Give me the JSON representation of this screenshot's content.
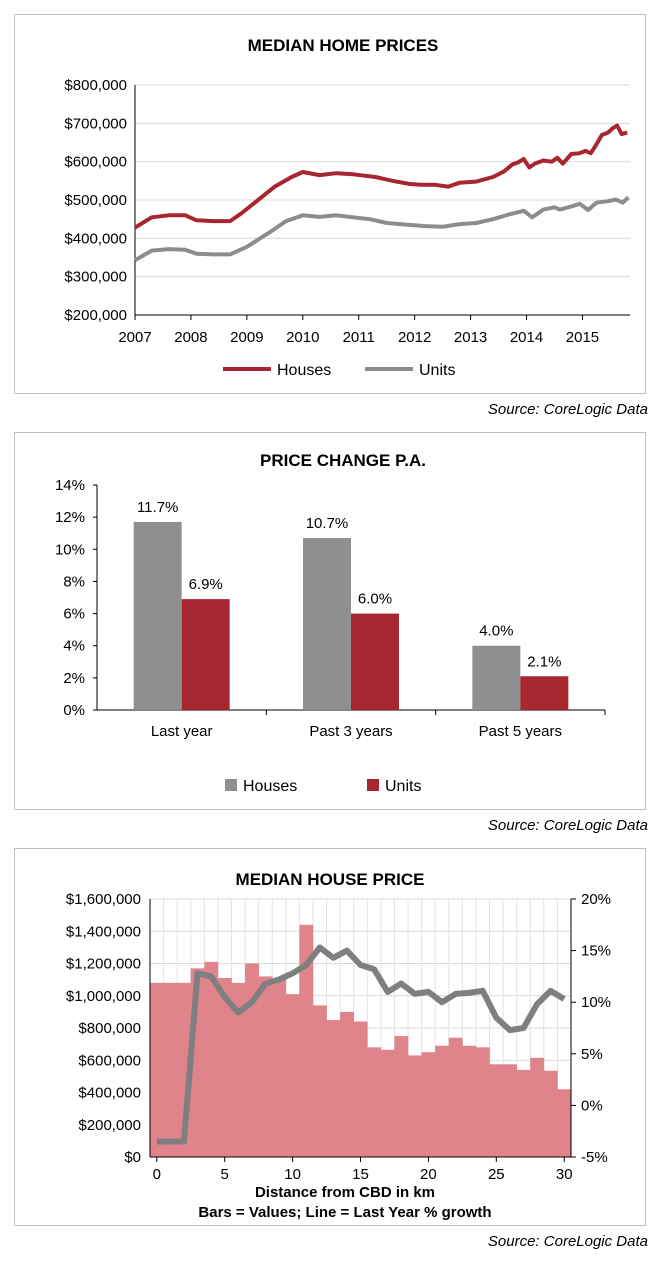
{
  "colors": {
    "houses": "#a8262f",
    "units": "#8c8c8c",
    "grey_bar": "#8f8f8f",
    "pink_bar": "#e0848b",
    "line_grey": "#7f7f7f"
  },
  "sources": [
    "Source: CoreLogic Data",
    "Source: CoreLogic Data",
    "Source: CoreLogic Data"
  ],
  "chart_data": [
    {
      "type": "line",
      "title": "MEDIAN HOME PRICES",
      "xlim": [
        2007,
        2015.85
      ],
      "ylim": [
        200000,
        800000
      ],
      "x_ticks": [
        2007,
        2008,
        2009,
        2010,
        2011,
        2012,
        2013,
        2014,
        2015
      ],
      "x_tick_labels": [
        "2007",
        "2008",
        "2009",
        "2010",
        "2011",
        "2012",
        "2013",
        "2014",
        "2015"
      ],
      "y_ticks": [
        200000,
        300000,
        400000,
        500000,
        600000,
        700000,
        800000
      ],
      "y_tick_labels": [
        "$200,000",
        "$300,000",
        "$400,000",
        "$500,000",
        "$600,000",
        "$700,000",
        "$800,000"
      ],
      "legend": "bottom",
      "series": [
        {
          "name": "Houses",
          "x": [
            2007.0,
            2007.3,
            2007.6,
            2007.9,
            2008.1,
            2008.4,
            2008.7,
            2008.9,
            2009.2,
            2009.5,
            2009.8,
            2010.0,
            2010.3,
            2010.6,
            2010.9,
            2011.3,
            2011.6,
            2011.9,
            2012.1,
            2012.35,
            2012.6,
            2012.8,
            2013.1,
            2013.4,
            2013.6,
            2013.75,
            2013.85,
            2013.95,
            2014.05,
            2014.15,
            2014.3,
            2014.45,
            2014.55,
            2014.65,
            2014.8,
            2014.95,
            2015.05,
            2015.15,
            2015.25,
            2015.35,
            2015.45,
            2015.55,
            2015.62,
            2015.7,
            2015.8
          ],
          "y": [
            428000,
            455000,
            460000,
            460000,
            447000,
            445000,
            445000,
            465000,
            500000,
            535000,
            560000,
            573000,
            565000,
            570000,
            567000,
            560000,
            550000,
            542000,
            540000,
            540000,
            535000,
            545000,
            548000,
            560000,
            575000,
            593000,
            598000,
            607000,
            585000,
            595000,
            603000,
            600000,
            610000,
            595000,
            620000,
            622000,
            628000,
            622000,
            645000,
            670000,
            675000,
            688000,
            694000,
            672000,
            676000
          ]
        },
        {
          "name": "Units",
          "x": [
            2007.0,
            2007.3,
            2007.6,
            2007.9,
            2008.1,
            2008.4,
            2008.7,
            2009.0,
            2009.4,
            2009.7,
            2010.0,
            2010.3,
            2010.6,
            2010.9,
            2011.2,
            2011.5,
            2011.9,
            2012.2,
            2012.5,
            2012.8,
            2013.1,
            2013.4,
            2013.7,
            2013.85,
            2013.95,
            2014.1,
            2014.3,
            2014.5,
            2014.6,
            2014.8,
            2014.95,
            2015.1,
            2015.25,
            2015.45,
            2015.6,
            2015.72,
            2015.82
          ],
          "y": [
            343000,
            368000,
            372000,
            370000,
            360000,
            358000,
            358000,
            378000,
            415000,
            445000,
            460000,
            456000,
            460000,
            455000,
            450000,
            440000,
            435000,
            432000,
            430000,
            437000,
            440000,
            450000,
            463000,
            468000,
            472000,
            455000,
            475000,
            481000,
            475000,
            483000,
            490000,
            474000,
            493000,
            497000,
            501000,
            493000,
            507000
          ]
        }
      ]
    },
    {
      "type": "bar",
      "title": "PRICE CHANGE P.A.",
      "categories": [
        "Last year",
        "Past 3 years",
        "Past 5 years"
      ],
      "ylim": [
        0,
        14
      ],
      "y_ticks": [
        0,
        2,
        4,
        6,
        8,
        10,
        12,
        14
      ],
      "y_tick_labels": [
        "0%",
        "2%",
        "4%",
        "6%",
        "8%",
        "10%",
        "12%",
        "14%"
      ],
      "legend": "bottom",
      "series": [
        {
          "name": "Houses",
          "values": [
            11.7,
            10.7,
            4.0
          ],
          "labels": [
            "11.7%",
            "10.7%",
            "4.0%"
          ]
        },
        {
          "name": "Units",
          "values": [
            6.9,
            6.0,
            2.1
          ],
          "labels": [
            "6.9%",
            "6.0%",
            "2.1%"
          ]
        }
      ]
    },
    {
      "type": "bar",
      "title": "MEDIAN HOUSE PRICE",
      "xlabel": "Distance from CBD in km",
      "caption": "Bars = Values; Line = Last Year % growth",
      "x": [
        0,
        1,
        2,
        3,
        4,
        5,
        6,
        7,
        8,
        9,
        10,
        11,
        12,
        13,
        14,
        15,
        16,
        17,
        18,
        19,
        20,
        21,
        22,
        23,
        24,
        25,
        26,
        27,
        28,
        29,
        30
      ],
      "xlim": [
        -0.5,
        30.5
      ],
      "x_ticks": [
        0,
        5,
        10,
        15,
        20,
        25,
        30
      ],
      "x_tick_labels": [
        "0",
        "5",
        "10",
        "15",
        "20",
        "25",
        "30"
      ],
      "ylim": [
        0,
        1600000
      ],
      "y_ticks": [
        0,
        200000,
        400000,
        600000,
        800000,
        1000000,
        1200000,
        1400000,
        1600000
      ],
      "y_tick_labels": [
        "$0",
        "$200,000",
        "$400,000",
        "$600,000",
        "$800,000",
        "$1,000,000",
        "$1,200,000",
        "$1,400,000",
        "$1,600,000"
      ],
      "y2lim": [
        -5,
        20
      ],
      "y2_ticks": [
        -5,
        0,
        5,
        10,
        15,
        20
      ],
      "y2_tick_labels": [
        "-5%",
        "0%",
        "5%",
        "10%",
        "15%",
        "20%"
      ],
      "grid": true,
      "series": [
        {
          "type": "bar",
          "values": [
            1080000,
            1080000,
            1080000,
            1170000,
            1210000,
            1110000,
            1080000,
            1200000,
            1120000,
            1100000,
            1010000,
            1440000,
            940000,
            850000,
            900000,
            840000,
            680000,
            665000,
            750000,
            630000,
            650000,
            690000,
            740000,
            690000,
            680000,
            575000,
            575000,
            540000,
            615000,
            535000,
            420000
          ]
        },
        {
          "type": "line",
          "values": [
            -3.5,
            -3.5,
            -3.5,
            12.8,
            12.5,
            10.5,
            9.0,
            10.0,
            11.8,
            12.2,
            12.8,
            13.6,
            15.3,
            14.3,
            15.0,
            13.6,
            13.2,
            11.0,
            11.8,
            10.8,
            11.0,
            10.0,
            10.8,
            10.9,
            11.1,
            8.5,
            7.3,
            7.5,
            9.8,
            11.1,
            10.3
          ]
        }
      ]
    }
  ]
}
